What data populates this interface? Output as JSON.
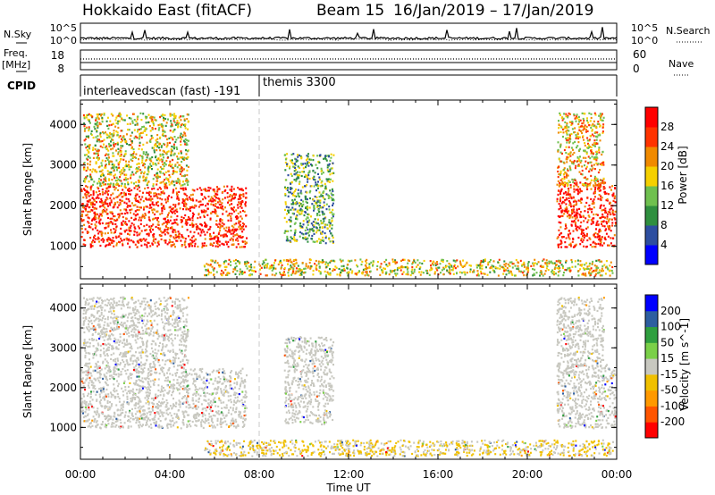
{
  "header": {
    "station": "Hokkaido East (fitACF)",
    "beam": "Beam 15",
    "date_range": "16/Jan/2019 – 17/Jan/2019"
  },
  "nsky_panel": {
    "left_label": "N.Sky",
    "right_label": "N.Search",
    "left_ticks": [
      "10^5",
      "10^0"
    ],
    "right_ticks": [
      "10^5",
      "10^0"
    ]
  },
  "freq_panel": {
    "left_label_line1": "Freq.",
    "left_label_line2": "[MHz]",
    "right_label": "Nave",
    "left_ticks": [
      "18",
      "8"
    ],
    "right_ticks": [
      "60",
      "0"
    ]
  },
  "cpid_panel": {
    "label": "CPID",
    "modes": [
      {
        "name": "interleavedscan (fast) -191",
        "start_hour": 0
      },
      {
        "name": "themis 3300",
        "start_hour": 8
      }
    ]
  },
  "x_axis": {
    "label": "Time UT",
    "ticks": [
      "00:00",
      "04:00",
      "08:00",
      "12:00",
      "16:00",
      "20:00",
      "00:00"
    ]
  },
  "chart_data": [
    {
      "type": "heatmap",
      "title": "",
      "xlabel": "Time UT",
      "ylabel": "Slant Range [km]",
      "x_range_hours": [
        0,
        24
      ],
      "ylim": [
        200,
        4600
      ],
      "yticks": [
        "1000",
        "2000",
        "3000",
        "4000"
      ],
      "colorbar": {
        "label": "Power [dB]",
        "range": [
          0,
          32
        ],
        "ticks": [
          "4",
          "8",
          "12",
          "16",
          "20",
          "24",
          "28"
        ],
        "colors": [
          "#0000ff",
          "#2d4ea0",
          "#2f8f3f",
          "#6fc04f",
          "#f5d000",
          "#f08a00",
          "#ff3300",
          "#ff0000"
        ]
      },
      "regions": [
        {
          "name": "early-F-region",
          "t": [
            0,
            7.4
          ],
          "range": [
            1000,
            2500
          ],
          "level": 28
        },
        {
          "name": "early-high-patches",
          "t": [
            0.1,
            4.8
          ],
          "range": [
            2500,
            4300
          ],
          "level": 18
        },
        {
          "name": "post-midnight-arc",
          "t": [
            9.1,
            11.3
          ],
          "range": [
            1100,
            3300
          ],
          "level": 12
        },
        {
          "name": "ground-scatter-band",
          "t": [
            5.5,
            23.8
          ],
          "range": [
            300,
            700
          ],
          "level": 18
        },
        {
          "name": "late-F-region",
          "t": [
            21.3,
            24
          ],
          "range": [
            1000,
            2600
          ],
          "level": 28
        },
        {
          "name": "late-high-patches",
          "t": [
            21.3,
            23.4
          ],
          "range": [
            2500,
            4300
          ],
          "level": 20
        }
      ]
    },
    {
      "type": "heatmap",
      "title": "",
      "xlabel": "Time UT",
      "ylabel": "Slant Range [km]",
      "x_range_hours": [
        0,
        24
      ],
      "ylim": [
        200,
        4600
      ],
      "yticks": [
        "1000",
        "2000",
        "3000",
        "4000"
      ],
      "colorbar": {
        "label": "Velocity [m s^-1]",
        "range": [
          -250,
          250
        ],
        "ticks": [
          "200",
          "100",
          "50",
          "15",
          "-15",
          "-50",
          "-100",
          "-200"
        ],
        "colors": [
          "#ff0000",
          "#ff5500",
          "#ff9900",
          "#f0c000",
          "#c8c8c0",
          "#7ad048",
          "#2f9f3f",
          "#2d5ea0",
          "#0000ff"
        ]
      },
      "regions": [
        {
          "name": "early-F-region",
          "t": [
            0,
            7.4
          ],
          "range": [
            1000,
            2500
          ],
          "level": 0
        },
        {
          "name": "early-high-patches",
          "t": [
            0.1,
            4.8
          ],
          "range": [
            2500,
            4300
          ],
          "level": 0
        },
        {
          "name": "post-midnight-arc",
          "t": [
            9.1,
            11.3
          ],
          "range": [
            1100,
            3300
          ],
          "level": 0
        },
        {
          "name": "ground-scatter-band",
          "t": [
            5.5,
            23.8
          ],
          "range": [
            300,
            700
          ],
          "level": -30
        },
        {
          "name": "late-F-region",
          "t": [
            21.3,
            24
          ],
          "range": [
            1000,
            2600
          ],
          "level": 0
        },
        {
          "name": "late-high-patches",
          "t": [
            21.3,
            23.4
          ],
          "range": [
            2500,
            4300
          ],
          "level": 0
        }
      ]
    }
  ]
}
